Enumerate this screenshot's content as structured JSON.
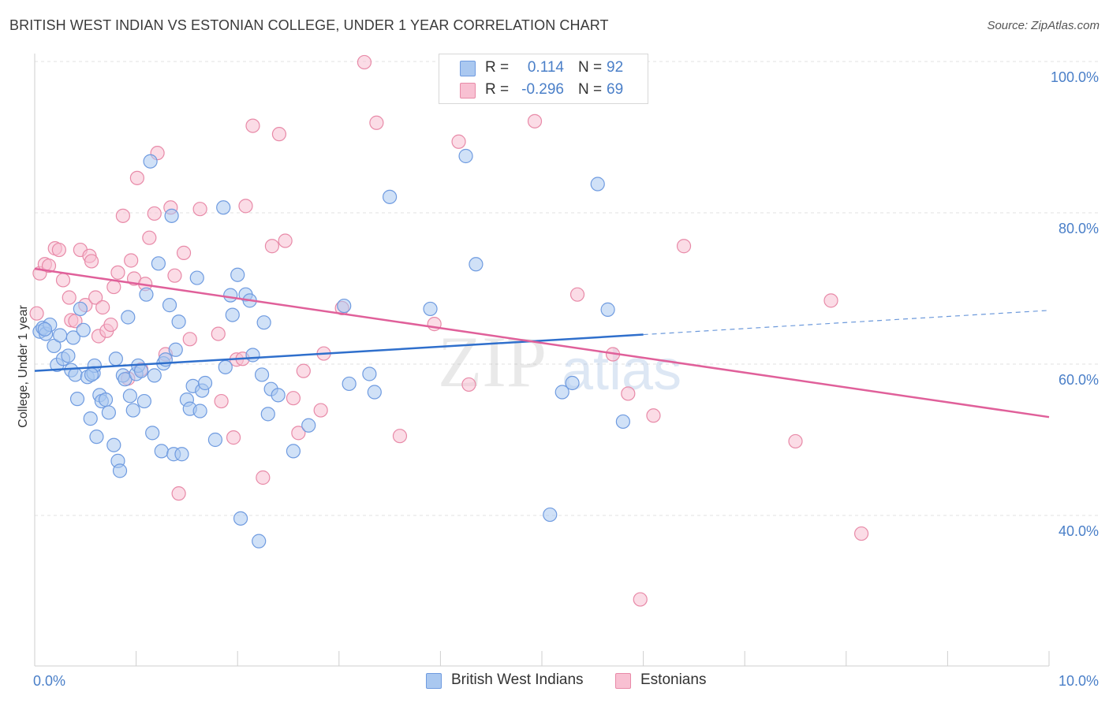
{
  "header": {
    "title": "BRITISH WEST INDIAN VS ESTONIAN COLLEGE, UNDER 1 YEAR CORRELATION CHART",
    "source": "Source: ZipAtlas.com"
  },
  "watermark": {
    "zip": "ZIP",
    "atlas": "atlas"
  },
  "legend": {
    "r_label": "R =",
    "n_label": "N =",
    "rows": [
      {
        "r": "0.114",
        "n": "92",
        "color": "#aac8f0",
        "edge": "#6f9be0"
      },
      {
        "r": "-0.296",
        "n": "69",
        "color": "#f8c0d2",
        "edge": "#e88aa8"
      }
    ]
  },
  "bottom_legend": [
    {
      "label": "British West Indians",
      "color": "#aac8f0",
      "edge": "#6f9be0"
    },
    {
      "label": "Estonians",
      "color": "#f8c0d2",
      "edge": "#e88aa8"
    }
  ],
  "chart_data": {
    "type": "scatter",
    "title": "BRITISH WEST INDIAN VS ESTONIAN COLLEGE, UNDER 1 YEAR CORRELATION CHART",
    "xlabel": "",
    "ylabel": "College, Under 1 year",
    "xlim": [
      0,
      10
    ],
    "ylim": [
      20,
      100
    ],
    "x_tick_labels": [
      "0.0%",
      "10.0%"
    ],
    "y_ticks": [
      40,
      60,
      80,
      100
    ],
    "y_tick_labels": [
      "40.0%",
      "60.0%",
      "80.0%",
      "100.0%"
    ],
    "grid": true,
    "legend_position": "top-center",
    "series": [
      {
        "name": "British West Indians",
        "color": "#6f9be0",
        "fill": "#aac8f0",
        "trend": {
          "x": [
            0,
            6.0
          ],
          "y": [
            59.1,
            63.9
          ],
          "dashed_to": [
            10,
            67.1
          ],
          "color": "#2f6fcc"
        },
        "points": [
          [
            0.05,
            64.3
          ],
          [
            0.08,
            64.8
          ],
          [
            0.11,
            64.0
          ],
          [
            0.15,
            65.2
          ],
          [
            0.19,
            62.4
          ],
          [
            0.22,
            59.9
          ],
          [
            0.25,
            63.8
          ],
          [
            0.28,
            60.7
          ],
          [
            0.33,
            61.1
          ],
          [
            0.36,
            59.2
          ],
          [
            0.38,
            63.5
          ],
          [
            0.4,
            58.6
          ],
          [
            0.42,
            55.4
          ],
          [
            0.45,
            67.3
          ],
          [
            0.48,
            64.5
          ],
          [
            0.52,
            58.3
          ],
          [
            0.55,
            52.8
          ],
          [
            0.58,
            58.8
          ],
          [
            0.59,
            59.8
          ],
          [
            0.61,
            50.4
          ],
          [
            0.64,
            55.9
          ],
          [
            0.66,
            55.1
          ],
          [
            0.7,
            55.3
          ],
          [
            0.73,
            53.6
          ],
          [
            0.78,
            49.3
          ],
          [
            0.8,
            60.7
          ],
          [
            0.82,
            47.2
          ],
          [
            0.84,
            45.9
          ],
          [
            0.87,
            58.5
          ],
          [
            0.89,
            58.0
          ],
          [
            0.92,
            66.2
          ],
          [
            0.94,
            55.8
          ],
          [
            0.97,
            53.9
          ],
          [
            1.0,
            58.7
          ],
          [
            1.02,
            59.8
          ],
          [
            1.05,
            59.1
          ],
          [
            1.08,
            55.1
          ],
          [
            1.1,
            69.2
          ],
          [
            1.14,
            86.8
          ],
          [
            1.16,
            50.9
          ],
          [
            1.18,
            58.5
          ],
          [
            1.22,
            73.3
          ],
          [
            1.25,
            48.5
          ],
          [
            1.27,
            60.1
          ],
          [
            1.29,
            60.6
          ],
          [
            1.33,
            67.8
          ],
          [
            1.35,
            79.6
          ],
          [
            1.37,
            48.1
          ],
          [
            1.39,
            61.9
          ],
          [
            1.42,
            65.6
          ],
          [
            1.45,
            48.1
          ],
          [
            1.5,
            55.3
          ],
          [
            1.53,
            54.1
          ],
          [
            1.56,
            57.1
          ],
          [
            1.6,
            71.4
          ],
          [
            1.63,
            53.8
          ],
          [
            1.65,
            56.5
          ],
          [
            1.68,
            57.5
          ],
          [
            1.86,
            80.7
          ],
          [
            1.88,
            59.6
          ],
          [
            1.93,
            69.1
          ],
          [
            1.95,
            66.5
          ],
          [
            2.0,
            71.8
          ],
          [
            2.03,
            39.6
          ],
          [
            2.08,
            69.2
          ],
          [
            2.12,
            68.4
          ],
          [
            2.15,
            61.2
          ],
          [
            2.21,
            36.6
          ],
          [
            2.24,
            58.6
          ],
          [
            2.26,
            65.5
          ],
          [
            2.3,
            53.4
          ],
          [
            2.33,
            56.7
          ],
          [
            2.4,
            55.9
          ],
          [
            2.55,
            48.5
          ],
          [
            2.7,
            51.9
          ],
          [
            3.05,
            67.7
          ],
          [
            3.1,
            57.4
          ],
          [
            3.3,
            58.7
          ],
          [
            3.35,
            56.3
          ],
          [
            3.5,
            82.1
          ],
          [
            3.9,
            67.3
          ],
          [
            4.25,
            87.5
          ],
          [
            4.35,
            73.2
          ],
          [
            5.08,
            40.1
          ],
          [
            5.2,
            56.3
          ],
          [
            5.3,
            57.5
          ],
          [
            5.55,
            83.8
          ],
          [
            5.65,
            67.2
          ],
          [
            5.8,
            52.4
          ],
          [
            0.1,
            64.6
          ],
          [
            0.56,
            58.6
          ],
          [
            1.78,
            50.0
          ]
        ]
      },
      {
        "name": "Estonians",
        "color": "#e88aa8",
        "fill": "#f8c0d2",
        "trend": {
          "x": [
            0,
            10
          ],
          "y": [
            72.6,
            53.0
          ],
          "color": "#e0609a"
        },
        "points": [
          [
            0.02,
            66.7
          ],
          [
            0.05,
            72.0
          ],
          [
            0.1,
            73.2
          ],
          [
            0.14,
            73.0
          ],
          [
            0.2,
            75.3
          ],
          [
            0.24,
            75.1
          ],
          [
            0.28,
            71.1
          ],
          [
            0.34,
            68.8
          ],
          [
            0.36,
            65.8
          ],
          [
            0.4,
            65.7
          ],
          [
            0.45,
            75.1
          ],
          [
            0.5,
            67.8
          ],
          [
            0.54,
            74.3
          ],
          [
            0.56,
            73.6
          ],
          [
            0.6,
            68.8
          ],
          [
            0.63,
            63.7
          ],
          [
            0.67,
            67.5
          ],
          [
            0.71,
            64.4
          ],
          [
            0.75,
            65.2
          ],
          [
            0.78,
            70.2
          ],
          [
            0.82,
            72.1
          ],
          [
            0.87,
            79.6
          ],
          [
            0.92,
            58.1
          ],
          [
            0.95,
            73.7
          ],
          [
            0.98,
            71.3
          ],
          [
            1.01,
            84.6
          ],
          [
            1.05,
            59.3
          ],
          [
            1.09,
            70.6
          ],
          [
            1.13,
            76.7
          ],
          [
            1.18,
            79.9
          ],
          [
            1.21,
            87.9
          ],
          [
            1.29,
            61.3
          ],
          [
            1.34,
            80.7
          ],
          [
            1.38,
            71.7
          ],
          [
            1.42,
            42.9
          ],
          [
            1.47,
            74.7
          ],
          [
            1.53,
            63.3
          ],
          [
            1.63,
            80.5
          ],
          [
            1.81,
            64.0
          ],
          [
            1.84,
            55.1
          ],
          [
            1.96,
            50.3
          ],
          [
            1.99,
            60.6
          ],
          [
            2.05,
            60.7
          ],
          [
            2.08,
            80.9
          ],
          [
            2.15,
            91.5
          ],
          [
            2.25,
            45.0
          ],
          [
            2.34,
            75.6
          ],
          [
            2.41,
            90.4
          ],
          [
            2.47,
            76.3
          ],
          [
            2.55,
            55.5
          ],
          [
            2.6,
            50.9
          ],
          [
            2.65,
            59.1
          ],
          [
            2.82,
            53.9
          ],
          [
            2.85,
            61.4
          ],
          [
            3.03,
            67.4
          ],
          [
            3.25,
            99.9
          ],
          [
            3.37,
            91.9
          ],
          [
            3.6,
            50.5
          ],
          [
            3.94,
            65.3
          ],
          [
            4.18,
            89.4
          ],
          [
            4.28,
            57.3
          ],
          [
            4.93,
            92.1
          ],
          [
            5.35,
            69.2
          ],
          [
            5.7,
            61.3
          ],
          [
            5.85,
            56.1
          ],
          [
            5.97,
            28.9
          ],
          [
            6.1,
            53.2
          ],
          [
            6.4,
            75.6
          ],
          [
            7.5,
            49.8
          ]
        ],
        "extra_points": [
          [
            7.85,
            68.4
          ],
          [
            8.15,
            37.6
          ]
        ]
      }
    ]
  }
}
